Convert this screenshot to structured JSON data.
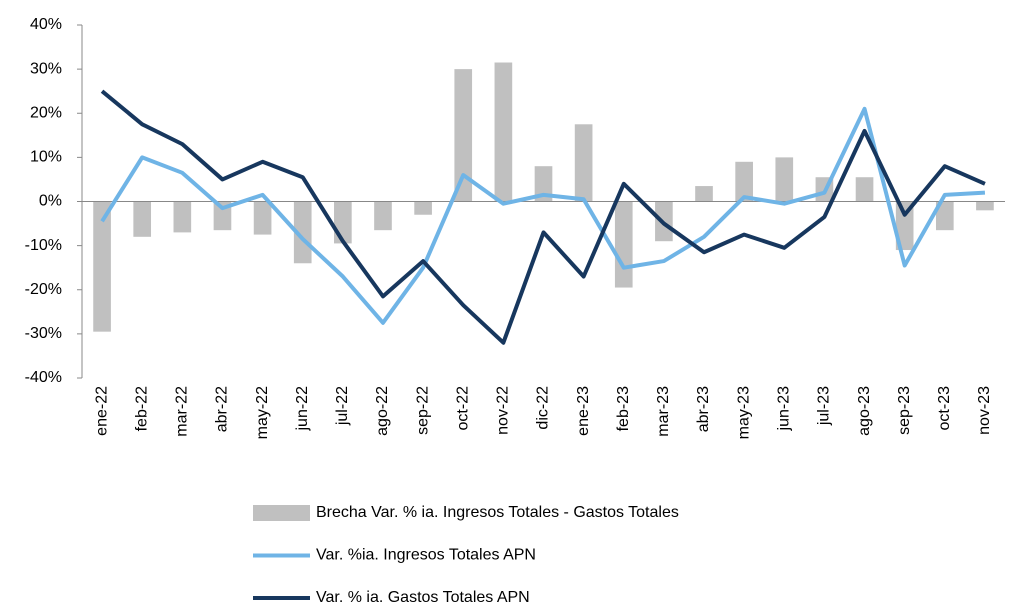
{
  "chart_data": {
    "type": "combo",
    "categories": [
      "ene-22",
      "feb-22",
      "mar-22",
      "abr-22",
      "may-22",
      "jun-22",
      "jul-22",
      "ago-22",
      "sep-22",
      "oct-22",
      "nov-22",
      "dic-22",
      "ene-23",
      "feb-23",
      "mar-23",
      "abr-23",
      "may-23",
      "jun-23",
      "jul-23",
      "ago-23",
      "sep-23",
      "oct-23",
      "nov-23"
    ],
    "series": [
      {
        "name": "Brecha Var. % ia. Ingresos Totales - Gastos Totales",
        "type": "bar",
        "color": "#c0c0c0",
        "values": [
          -29.5,
          -8,
          -7,
          -6.5,
          -7.5,
          -14,
          -9.5,
          -6.5,
          -3,
          30,
          31.5,
          8,
          17.5,
          -19.5,
          -9,
          3.5,
          9,
          10,
          5.5,
          5.5,
          -11,
          -6.5,
          -2
        ]
      },
      {
        "name": "Var. %ia. Ingresos Totales APN",
        "type": "line",
        "color": "#6fb4e6",
        "values": [
          -4.5,
          10,
          6.5,
          -1.5,
          1.5,
          -8.5,
          -17,
          -27.5,
          -15,
          6,
          -0.5,
          1.5,
          0.5,
          -15,
          -13.5,
          -8,
          1,
          -0.5,
          2,
          21,
          -14.5,
          1.5,
          2
        ]
      },
      {
        "name": "Var. % ia. Gastos Totales APN",
        "type": "line",
        "color": "#17375e",
        "values": [
          25,
          17.5,
          13,
          5,
          9,
          5.5,
          -9,
          -21.5,
          -13.5,
          -23.5,
          -32,
          -7,
          -17,
          4,
          -5,
          -11.5,
          -7.5,
          -10.5,
          -3.5,
          16,
          -3,
          8,
          4
        ]
      }
    ],
    "ylim": [
      -40,
      40
    ],
    "yticks": [
      {
        "value": -40,
        "label": "-40%"
      },
      {
        "value": -30,
        "label": "-30%"
      },
      {
        "value": -20,
        "label": "-20%"
      },
      {
        "value": -10,
        "label": "-10%"
      },
      {
        "value": 0,
        "label": "0%"
      },
      {
        "value": 10,
        "label": "10%"
      },
      {
        "value": 20,
        "label": "20%"
      },
      {
        "value": 30,
        "label": "30%"
      },
      {
        "value": 40,
        "label": "40%"
      }
    ],
    "legend": "bottom"
  }
}
